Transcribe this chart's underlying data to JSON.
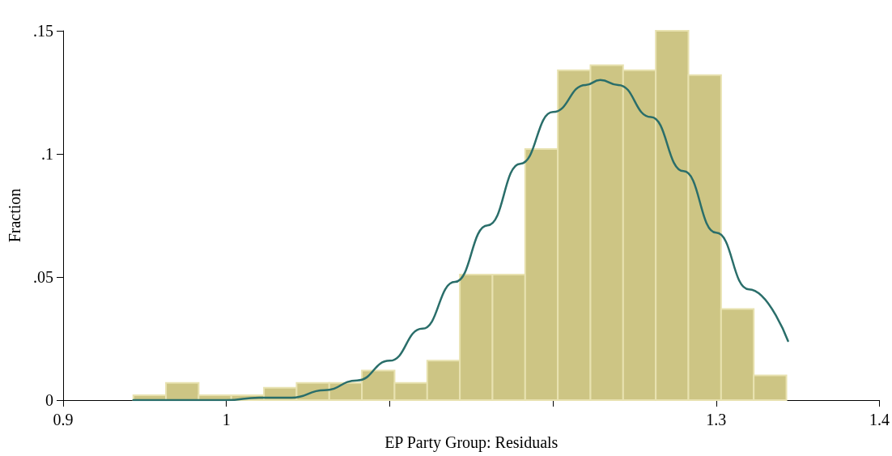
{
  "chart_data": {
    "type": "histogram",
    "xlabel": "EP Party Group: Residuals",
    "ylabel": "Fraction",
    "bins": [
      0.943,
      0.963,
      0.983,
      1.003,
      1.023,
      1.043,
      1.063,
      1.083,
      1.103,
      1.123,
      1.143,
      1.163,
      1.183,
      1.203,
      1.223,
      1.243,
      1.263,
      1.283,
      1.303,
      1.323,
      1.343
    ],
    "values": [
      0.002,
      0.007,
      0.002,
      0.002,
      0.005,
      0.007,
      0.007,
      0.012,
      0.007,
      0.016,
      0.051,
      0.051,
      0.102,
      0.134,
      0.136,
      0.134,
      0.15,
      0.132,
      0.037,
      0.01
    ],
    "color": "#cdc584",
    "series": [
      {
        "type": "line",
        "color": "#2a6e6a",
        "x": [
          0.943,
          0.96,
          0.98,
          1.0,
          1.02,
          1.04,
          1.06,
          1.08,
          1.1,
          1.12,
          1.14,
          1.16,
          1.18,
          1.2,
          1.22,
          1.229,
          1.24,
          1.26,
          1.28,
          1.3,
          1.32,
          1.344
        ],
        "values": [
          0.0,
          0.0,
          0.0,
          0.0,
          0.001,
          0.001,
          0.004,
          0.008,
          0.016,
          0.029,
          0.048,
          0.071,
          0.096,
          0.117,
          0.128,
          0.13,
          0.128,
          0.115,
          0.093,
          0.068,
          0.045,
          0.024
        ]
      }
    ],
    "marker": "none",
    "line_style": "solid",
    "xlim": [
      0.9,
      1.4
    ],
    "xticks": [
      0.9,
      1,
      {
        "value": 1.1,
        "label": null
      },
      {
        "value": 1.2,
        "label": null
      },
      1.3,
      1.4
    ],
    "ylim": [
      0,
      0.15
    ],
    "yticks": [
      0,
      {
        "value": 0.05,
        "label": ".05"
      },
      {
        "value": 0.1,
        "label": ".1"
      },
      {
        "value": 0.15,
        "label": ".15"
      }
    ],
    "grid": false
  }
}
